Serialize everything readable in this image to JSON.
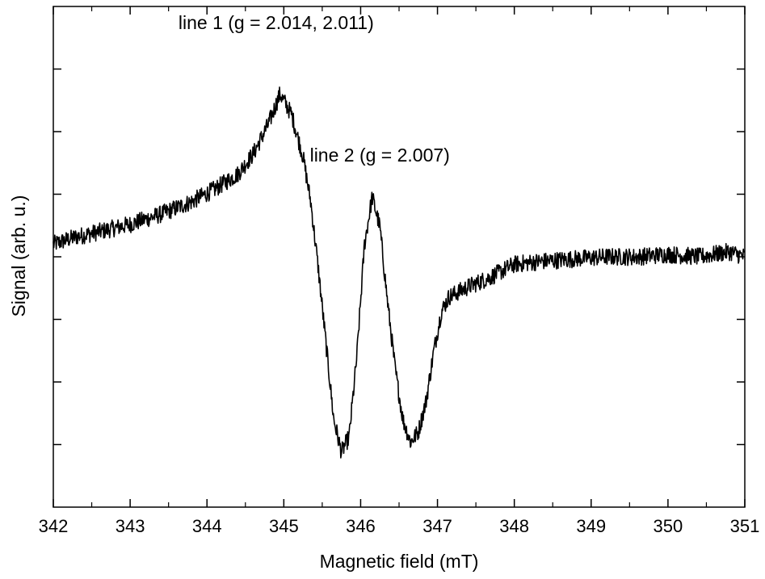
{
  "chart_data": {
    "type": "line",
    "title": "",
    "xlabel": "Magnetic field (mT)",
    "ylabel": "Signal (arb. u.)",
    "xlim": [
      342,
      351
    ],
    "ylim": [
      -1.0,
      1.0
    ],
    "x_ticks": [
      "342",
      "343",
      "344",
      "345",
      "346",
      "347",
      "348",
      "349",
      "350",
      "351"
    ],
    "y_ticks_unlabeled": true,
    "grid": false,
    "legend": "none",
    "line_color": "#000000",
    "annotations": [
      {
        "text": "line 1 (g = 2.014, 2.011)",
        "x": 344.9,
        "y": 0.91
      },
      {
        "text": "line 2 (g = 2.007)",
        "x": 346.25,
        "y": 0.38
      }
    ],
    "series": [
      {
        "x": [
          342.0,
          342.3,
          342.6,
          343.0,
          343.4,
          343.8,
          344.1,
          344.4,
          344.6,
          344.8,
          344.95,
          345.1,
          345.25,
          345.35,
          345.45,
          345.55,
          345.65,
          345.75,
          345.85,
          345.95,
          346.05,
          346.15,
          346.25,
          346.35,
          346.45,
          346.55,
          346.65,
          346.75,
          346.85,
          346.95,
          347.05,
          347.15,
          347.4,
          347.7,
          348.0,
          348.3,
          348.7,
          349.2,
          349.6,
          350.0,
          350.4,
          350.8,
          351.0
        ],
        "y": [
          0.05,
          0.08,
          0.1,
          0.13,
          0.17,
          0.22,
          0.27,
          0.33,
          0.41,
          0.53,
          0.65,
          0.57,
          0.4,
          0.22,
          -0.05,
          -0.35,
          -0.65,
          -0.78,
          -0.72,
          -0.4,
          0.05,
          0.24,
          0.12,
          -0.18,
          -0.45,
          -0.65,
          -0.74,
          -0.7,
          -0.58,
          -0.38,
          -0.22,
          -0.16,
          -0.12,
          -0.08,
          -0.03,
          -0.02,
          -0.01,
          0.0,
          0.0,
          0.01,
          0.0,
          0.02,
          0.0
        ]
      }
    ]
  }
}
